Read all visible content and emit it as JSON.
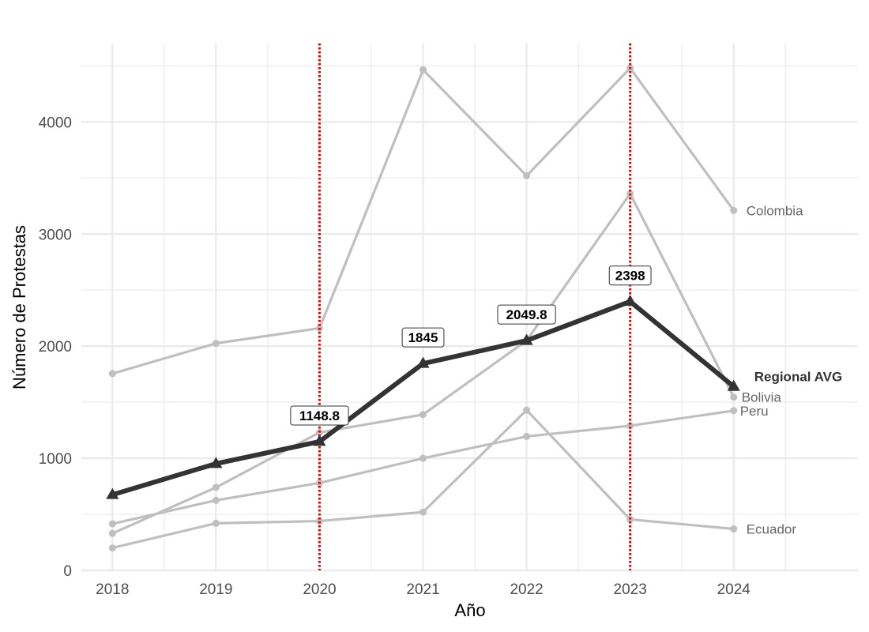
{
  "chart_data": {
    "type": "line",
    "title": "",
    "xlabel": "Año",
    "ylabel": "Número de Protestas",
    "x": [
      2018,
      2019,
      2020,
      2021,
      2022,
      2023,
      2024
    ],
    "xlim": [
      2017.7,
      2025.2
    ],
    "ylim": [
      0,
      4700
    ],
    "y_ticks": [
      0,
      1000,
      2000,
      3000,
      4000
    ],
    "grid": true,
    "legend": "none",
    "series": [
      {
        "name": "Colombia",
        "values": [
          1755,
          2025,
          2160,
          4465,
          3520,
          4480,
          3210
        ],
        "color": "#bfbfbf"
      },
      {
        "name": "Bolivia",
        "values": [
          330,
          740,
          1230,
          1390,
          2050,
          3360,
          1545
        ],
        "color": "#bfbfbf"
      },
      {
        "name": "Peru",
        "values": [
          415,
          625,
          780,
          1000,
          1195,
          1290,
          1425
        ],
        "color": "#bfbfbf"
      },
      {
        "name": "Ecuador",
        "values": [
          200,
          420,
          440,
          520,
          1430,
          455,
          370
        ],
        "color": "#bfbfbf"
      },
      {
        "name": "Regional AVG",
        "values": [
          675,
          952,
          1148.8,
          1845,
          2049.8,
          2398,
          1640
        ],
        "color": "#333333"
      }
    ],
    "value_labels": [
      {
        "x": 2020,
        "y": 1148.8,
        "text": "1148.8"
      },
      {
        "x": 2021,
        "y": 1845,
        "text": "1845"
      },
      {
        "x": 2022,
        "y": 2049.8,
        "text": "2049.8"
      },
      {
        "x": 2023,
        "y": 2398,
        "text": "2398"
      }
    ],
    "reference_lines": [
      {
        "x": 2020,
        "color": "#e60000",
        "style": "dotted"
      },
      {
        "x": 2023,
        "color": "#e60000",
        "style": "dotted"
      }
    ]
  }
}
